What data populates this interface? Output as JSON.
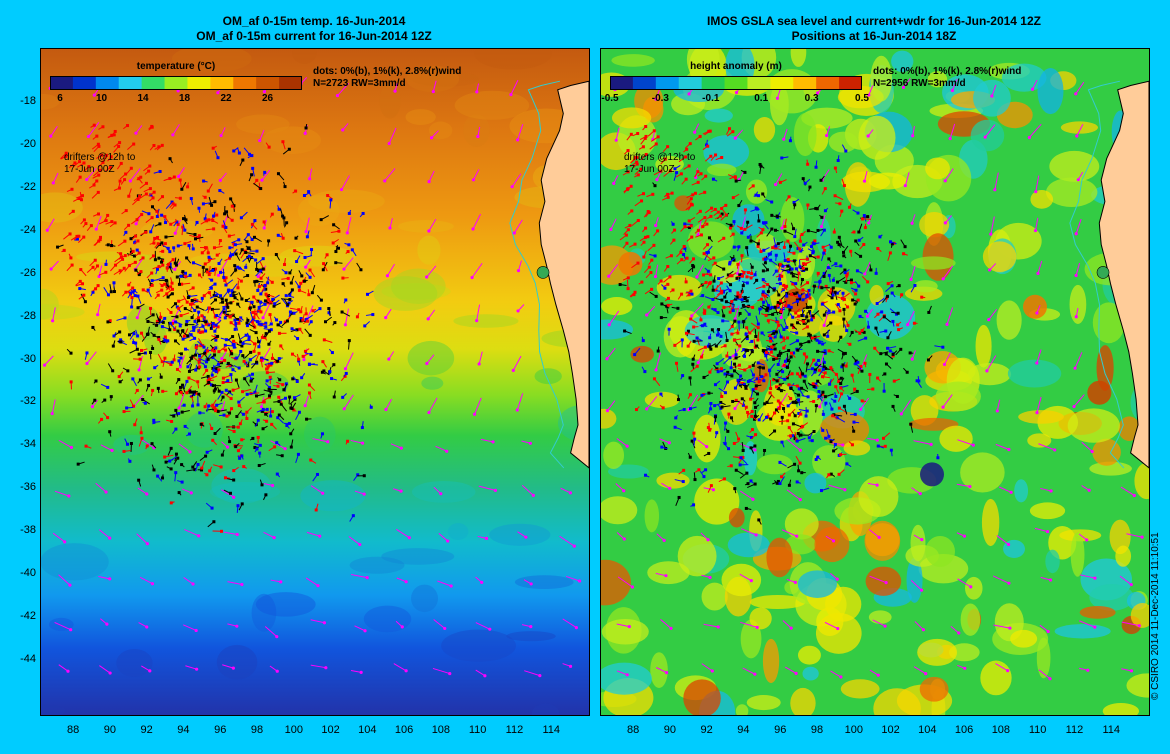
{
  "left_panel": {
    "title_line1": "OM_af 0-15m temp. 16-Jun-2014",
    "title_line2": "OM_af 0-15m current for 16-Jun-2014 12Z",
    "legend_title": "temperature (°C)",
    "legend_ticks": [
      "6",
      "10",
      "14",
      "18",
      "22",
      "26"
    ],
    "legend_colors": [
      "#1a1a80",
      "#0033cc",
      "#0088ee",
      "#22ccee",
      "#33dd66",
      "#99ee22",
      "#eeee00",
      "#ffbb00",
      "#ee7700",
      "#cc5500",
      "#aa3300"
    ],
    "dots_line1": "dots: 0%(b), 1%(k), 2.8%(r)wind",
    "dots_line2": "N=2723 RW=3mm/d",
    "drifters_line1": "drifters @12h to",
    "drifters_line2": "17-Jun 00Z"
  },
  "right_panel": {
    "title_line1": "IMOS GSLA sea level and current+wdr for 16-Jun-2014 12Z",
    "title_line2": "Positions at 16-Jun-2014 18Z",
    "legend_title": "height anomaly (m)",
    "legend_ticks": [
      "-0.5",
      "-0.3",
      "-0.1",
      "0.1",
      "0.3",
      "0.5"
    ],
    "legend_colors": [
      "#1a1a80",
      "#0044cc",
      "#0099ee",
      "#22ccdd",
      "#22cc55",
      "#55dd22",
      "#bbee22",
      "#eeee00",
      "#ffbb00",
      "#ee6600",
      "#cc2200"
    ],
    "dots_line1": "dots: 0%(b), 1%(k), 2.8%(r)wind",
    "dots_line2": "N=2956 RW=3mm/d",
    "drifters_line1": "drifters @12h to",
    "drifters_line2": "17-Jun 00Z"
  },
  "axes": {
    "y_ticks": [
      "-18",
      "-20",
      "-22",
      "-24",
      "-26",
      "-28",
      "-30",
      "-32",
      "-34",
      "-36",
      "-38",
      "-40",
      "-42",
      "-44"
    ],
    "y_values": [
      -18,
      -20,
      -22,
      -24,
      -26,
      -28,
      -30,
      -32,
      -34,
      -36,
      -38,
      -40,
      -42,
      -44
    ],
    "x_ticks": [
      "88",
      "90",
      "92",
      "94",
      "96",
      "98",
      "100",
      "102",
      "104",
      "106",
      "108",
      "110",
      "112",
      "114"
    ],
    "x_values": [
      88,
      90,
      92,
      94,
      96,
      98,
      100,
      102,
      104,
      106,
      108,
      110,
      112,
      114
    ],
    "lon_range": [
      86.2,
      116.0
    ],
    "lat_range": [
      -46.5,
      -15.5
    ]
  },
  "colors": {
    "frame": "#00ccff",
    "land": "#ffcc99",
    "coast": "#33cccc",
    "wind_vectors": "#ff00ff",
    "drifter_0pct": "#0000ff",
    "drifter_1pct": "#000000",
    "drifter_2_8pct": "#ff0000"
  },
  "side_note": "© CSIRO 2014  11-Dec-2014 11:10:51"
}
